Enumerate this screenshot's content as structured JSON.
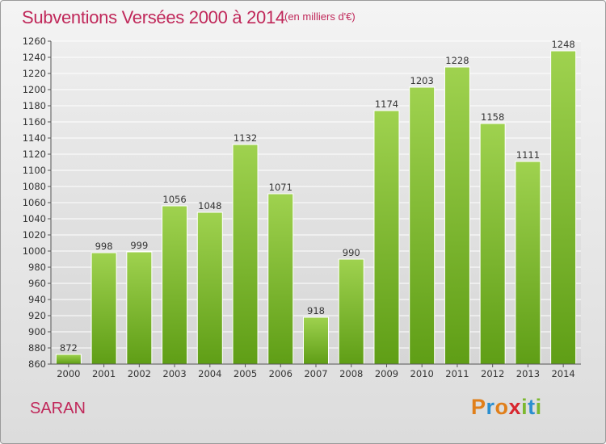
{
  "header": {
    "title": "Subventions Versées 2000 à 2014",
    "subtitle": "(en milliers d'€)"
  },
  "footer": {
    "place": "SARAN",
    "logo": {
      "text": "Proxiti",
      "colors": [
        "#e07f1a",
        "#2b8fd0",
        "#e07f1a",
        "#d8262f",
        "#7cb82f",
        "#2b8fd0",
        "#7cb82f"
      ]
    }
  },
  "chart_data": {
    "type": "bar",
    "categories": [
      "2000",
      "2001",
      "2002",
      "2003",
      "2004",
      "2005",
      "2006",
      "2007",
      "2008",
      "2009",
      "2010",
      "2011",
      "2012",
      "2013",
      "2014"
    ],
    "values": [
      872,
      998,
      999,
      1056,
      1048,
      1132,
      1071,
      918,
      990,
      1174,
      1203,
      1228,
      1158,
      1111,
      1248
    ],
    "data_labels": [
      "872",
      "998",
      "999",
      "1056",
      "1048",
      "1132",
      "1071",
      "918",
      "990",
      "1174",
      "1203",
      "1228",
      "1158",
      "1111",
      "1248"
    ],
    "yticks": [
      "860",
      "880",
      "900",
      "920",
      "940",
      "960",
      "980",
      "1000",
      "1020",
      "1040",
      "1060",
      "1080",
      "1100",
      "1120",
      "1140",
      "1160",
      "1180",
      "1200",
      "1220",
      "1240",
      "1260"
    ],
    "ylim": [
      860,
      1260
    ],
    "title": "Subventions Versées 2000 à 2014",
    "xlabel": "",
    "ylabel": "",
    "grid": true,
    "bar_color": "#8cc63f",
    "bar_color_dark": "#5a9a1a"
  }
}
